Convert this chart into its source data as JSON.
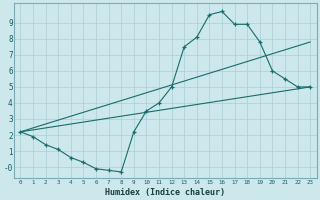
{
  "xlabel": "Humidex (Indice chaleur)",
  "bg_color": "#cce8ec",
  "grid_color": "#aacdd4",
  "line_color": "#1a6b6b",
  "line1_x": [
    0,
    1,
    2,
    3,
    4,
    5,
    6,
    7,
    8,
    9,
    10,
    11,
    12,
    13,
    14,
    15,
    16,
    17,
    18,
    19,
    20,
    21,
    22,
    23
  ],
  "line1_y": [
    2.2,
    1.9,
    1.4,
    1.1,
    0.6,
    0.3,
    -0.1,
    -0.2,
    -0.3,
    2.2,
    3.5,
    4.0,
    5.0,
    7.5,
    8.1,
    9.5,
    9.7,
    8.9,
    8.9,
    7.8,
    6.0,
    5.5,
    5.0,
    5.0
  ],
  "line2_x": [
    0,
    23
  ],
  "line2_y": [
    2.2,
    5.0
  ],
  "line3_x": [
    0,
    23
  ],
  "line3_y": [
    2.2,
    7.8
  ],
  "xlim": [
    -0.5,
    23.5
  ],
  "ylim": [
    -0.7,
    10.2
  ],
  "xticks": [
    0,
    1,
    2,
    3,
    4,
    5,
    6,
    7,
    8,
    9,
    10,
    11,
    12,
    13,
    14,
    15,
    16,
    17,
    18,
    19,
    20,
    21,
    22,
    23
  ],
  "yticks": [
    0,
    1,
    2,
    3,
    4,
    5,
    6,
    7,
    8,
    9
  ],
  "ytick_labels": [
    "-0",
    "1",
    "2",
    "3",
    "4",
    "5",
    "6",
    "7",
    "8",
    "9"
  ]
}
